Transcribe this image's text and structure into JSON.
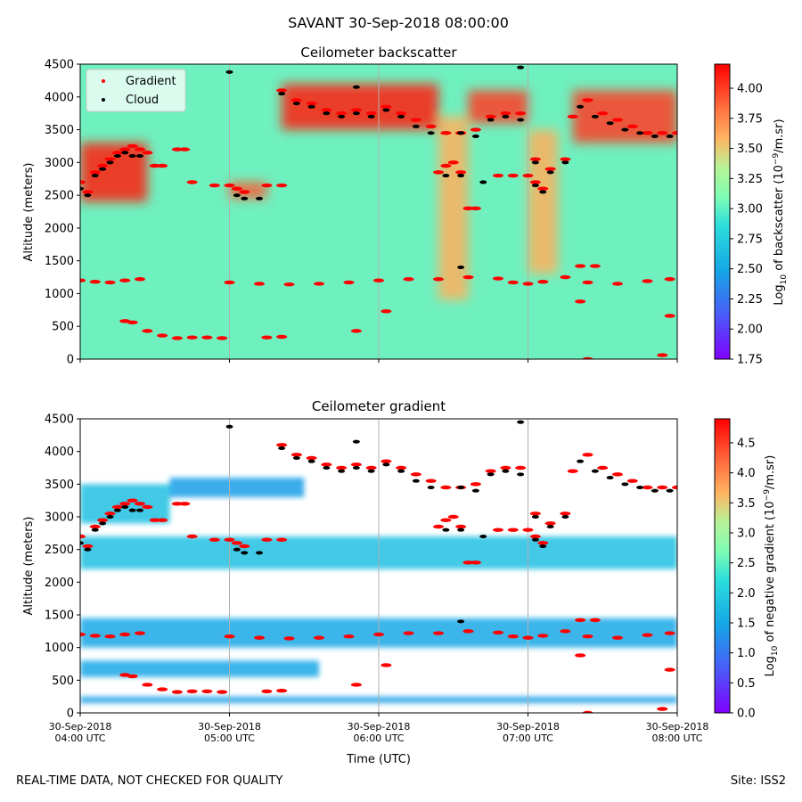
{
  "figure": {
    "suptitle": "SAVANT 30-Sep-2018 08:00:00",
    "footer_left": "REAL-TIME DATA, NOT CHECKED FOR QUALITY",
    "footer_right": "Site: ISS2",
    "xlabel": "Time (UTC)"
  },
  "chart_data": [
    {
      "type": "heatmap",
      "title": "Ceilometer backscatter",
      "ylabel": "Altitude (meters)",
      "colorbar_label": "Log10 of backscatter (10^-9/m.sr)",
      "colorbar_range": [
        1.75,
        4.2
      ],
      "colorbar_ticks": [
        "1.75",
        "2.00",
        "2.25",
        "2.50",
        "2.75",
        "3.00",
        "3.25",
        "3.50",
        "3.75",
        "4.00"
      ],
      "colormap": "rainbow",
      "xlim": [
        0,
        4
      ],
      "ylim": [
        0,
        4500
      ],
      "yticks": [
        0,
        500,
        1000,
        1500,
        2000,
        2500,
        3000,
        3500,
        4000,
        4500
      ],
      "legend": {
        "placement": "top-left",
        "entries": [
          {
            "label": "Gradient",
            "color": "#ff0000"
          },
          {
            "label": "Cloud",
            "color": "#000000"
          }
        ]
      },
      "background_level": 2.75,
      "high_signal_regions": [
        {
          "x0": 0.0,
          "x1": 0.45,
          "y0": 2400,
          "y1": 3300,
          "level": 4.1
        },
        {
          "x0": 1.0,
          "x1": 1.25,
          "y0": 2450,
          "y1": 2700,
          "level": 3.9
        },
        {
          "x0": 1.35,
          "x1": 2.4,
          "y0": 3500,
          "y1": 4200,
          "level": 4.1
        },
        {
          "x0": 2.4,
          "x1": 2.6,
          "y0": 900,
          "y1": 3700,
          "level": 3.6
        },
        {
          "x0": 2.6,
          "x1": 3.0,
          "y0": 3600,
          "y1": 4100,
          "level": 4.0
        },
        {
          "x0": 3.0,
          "x1": 3.2,
          "y0": 1300,
          "y1": 3500,
          "level": 3.6
        },
        {
          "x0": 3.3,
          "x1": 4.0,
          "y0": 3300,
          "y1": 4100,
          "level": 4.0
        }
      ]
    },
    {
      "type": "heatmap",
      "title": "Ceilometer gradient",
      "ylabel": "Altitude (meters)",
      "colorbar_label": "Log10 of negative gradient (10^-9/m.sr)",
      "colorbar_range": [
        0.0,
        4.9
      ],
      "colorbar_ticks": [
        "0.0",
        "0.5",
        "1.0",
        "1.5",
        "2.0",
        "2.5",
        "3.0",
        "3.5",
        "4.0",
        "4.5"
      ],
      "colormap": "rainbow",
      "xlim": [
        0,
        4
      ],
      "ylim": [
        0,
        4500
      ],
      "yticks": [
        0,
        500,
        1000,
        1500,
        2000,
        2500,
        3000,
        3500,
        4000,
        4500
      ],
      "xticks": [
        "30-Sep-2018\n04:00 UTC",
        "30-Sep-2018\n05:00 UTC",
        "30-Sep-2018\n06:00 UTC",
        "30-Sep-2018\n07:00 UTC",
        "30-Sep-2018\n08:00 UTC"
      ],
      "bands": [
        {
          "x0": 0.0,
          "x1": 4.0,
          "y0": 150,
          "y1": 250,
          "level": 1.4
        },
        {
          "x0": 0.0,
          "x1": 1.6,
          "y0": 550,
          "y1": 800,
          "level": 1.5
        },
        {
          "x0": 0.0,
          "x1": 4.0,
          "y0": 1000,
          "y1": 1450,
          "level": 1.5
        },
        {
          "x0": 0.0,
          "x1": 4.0,
          "y0": 2200,
          "y1": 2700,
          "level": 1.8
        },
        {
          "x0": 0.0,
          "x1": 0.6,
          "y0": 2900,
          "y1": 3500,
          "level": 1.8
        },
        {
          "x0": 0.6,
          "x1": 1.5,
          "y0": 3300,
          "y1": 3600,
          "level": 1.4
        }
      ]
    }
  ],
  "layers": {
    "gradient_points": [
      [
        0.0,
        2700
      ],
      [
        0.05,
        2550
      ],
      [
        0.1,
        2850
      ],
      [
        0.15,
        2950
      ],
      [
        0.2,
        3050
      ],
      [
        0.25,
        3150
      ],
      [
        0.3,
        3200
      ],
      [
        0.35,
        3250
      ],
      [
        0.4,
        3200
      ],
      [
        0.45,
        3150
      ],
      [
        0.5,
        2950
      ],
      [
        0.55,
        2950
      ],
      [
        0.65,
        3200
      ],
      [
        0.7,
        3200
      ],
      [
        0.75,
        2700
      ],
      [
        0.9,
        2650
      ],
      [
        1.0,
        2650
      ],
      [
        1.05,
        2600
      ],
      [
        1.1,
        2550
      ],
      [
        1.25,
        2650
      ],
      [
        1.35,
        2650
      ],
      [
        1.35,
        4100
      ],
      [
        1.45,
        3950
      ],
      [
        1.55,
        3900
      ],
      [
        1.65,
        3800
      ],
      [
        1.75,
        3750
      ],
      [
        1.85,
        3800
      ],
      [
        1.95,
        3750
      ],
      [
        2.05,
        3850
      ],
      [
        2.15,
        3750
      ],
      [
        2.25,
        3650
      ],
      [
        2.35,
        3550
      ],
      [
        2.45,
        3450
      ],
      [
        2.55,
        3450
      ],
      [
        2.65,
        3500
      ],
      [
        2.75,
        3700
      ],
      [
        2.85,
        3750
      ],
      [
        2.95,
        3750
      ],
      [
        3.05,
        3050
      ],
      [
        3.15,
        2900
      ],
      [
        3.25,
        3050
      ],
      [
        3.3,
        3700
      ],
      [
        3.4,
        3950
      ],
      [
        3.5,
        3750
      ],
      [
        3.6,
        3650
      ],
      [
        3.7,
        3550
      ],
      [
        3.8,
        3450
      ],
      [
        3.9,
        3450
      ],
      [
        4.0,
        3450
      ],
      [
        2.4,
        2850
      ],
      [
        2.45,
        2950
      ],
      [
        2.5,
        3000
      ],
      [
        2.55,
        2850
      ],
      [
        2.8,
        2800
      ],
      [
        2.9,
        2800
      ],
      [
        3.0,
        2800
      ],
      [
        3.05,
        2700
      ],
      [
        3.1,
        2600
      ],
      [
        2.6,
        2300
      ],
      [
        2.65,
        2300
      ],
      [
        0.0,
        1200
      ],
      [
        0.1,
        1180
      ],
      [
        0.2,
        1170
      ],
      [
        0.3,
        1200
      ],
      [
        0.4,
        1220
      ],
      [
        1.0,
        1170
      ],
      [
        1.2,
        1150
      ],
      [
        1.4,
        1140
      ],
      [
        1.6,
        1150
      ],
      [
        1.8,
        1170
      ],
      [
        2.0,
        1200
      ],
      [
        2.2,
        1220
      ],
      [
        2.4,
        1220
      ],
      [
        2.6,
        1250
      ],
      [
        2.8,
        1230
      ],
      [
        2.9,
        1170
      ],
      [
        3.0,
        1150
      ],
      [
        3.1,
        1180
      ],
      [
        3.25,
        1250
      ],
      [
        3.4,
        1170
      ],
      [
        3.6,
        1150
      ],
      [
        3.8,
        1190
      ],
      [
        3.95,
        1220
      ],
      [
        0.3,
        580
      ],
      [
        0.35,
        560
      ],
      [
        0.45,
        430
      ],
      [
        0.55,
        360
      ],
      [
        0.65,
        320
      ],
      [
        0.75,
        330
      ],
      [
        0.85,
        330
      ],
      [
        0.95,
        320
      ],
      [
        1.25,
        330
      ],
      [
        1.35,
        340
      ],
      [
        2.05,
        730
      ],
      [
        1.85,
        430
      ],
      [
        3.35,
        1420
      ],
      [
        3.45,
        1420
      ],
      [
        3.35,
        880
      ],
      [
        3.4,
        0
      ],
      [
        3.95,
        660
      ],
      [
        3.9,
        60
      ]
    ],
    "cloud_points": [
      [
        0.0,
        2600
      ],
      [
        0.05,
        2500
      ],
      [
        0.1,
        2800
      ],
      [
        0.15,
        2900
      ],
      [
        0.2,
        3000
      ],
      [
        0.25,
        3100
      ],
      [
        0.3,
        3150
      ],
      [
        0.35,
        3100
      ],
      [
        0.4,
        3100
      ],
      [
        1.05,
        2500
      ],
      [
        1.1,
        2450
      ],
      [
        1.2,
        2450
      ],
      [
        1.0,
        4380
      ],
      [
        1.35,
        4050
      ],
      [
        1.45,
        3900
      ],
      [
        1.55,
        3850
      ],
      [
        1.65,
        3750
      ],
      [
        1.75,
        3700
      ],
      [
        1.85,
        3750
      ],
      [
        1.95,
        3700
      ],
      [
        2.05,
        3800
      ],
      [
        2.15,
        3700
      ],
      [
        2.25,
        3550
      ],
      [
        2.35,
        3450
      ],
      [
        2.55,
        3450
      ],
      [
        2.65,
        3400
      ],
      [
        2.75,
        3650
      ],
      [
        2.85,
        3700
      ],
      [
        2.95,
        3650
      ],
      [
        3.05,
        3000
      ],
      [
        3.15,
        2850
      ],
      [
        3.25,
        3000
      ],
      [
        3.35,
        3850
      ],
      [
        3.45,
        3700
      ],
      [
        3.55,
        3600
      ],
      [
        3.65,
        3500
      ],
      [
        3.75,
        3450
      ],
      [
        3.85,
        3400
      ],
      [
        3.95,
        3400
      ],
      [
        2.45,
        2800
      ],
      [
        2.55,
        2800
      ],
      [
        2.7,
        2700
      ],
      [
        3.05,
        2650
      ],
      [
        3.1,
        2550
      ],
      [
        2.55,
        1400
      ],
      [
        1.85,
        4150
      ],
      [
        2.95,
        4450
      ]
    ]
  }
}
